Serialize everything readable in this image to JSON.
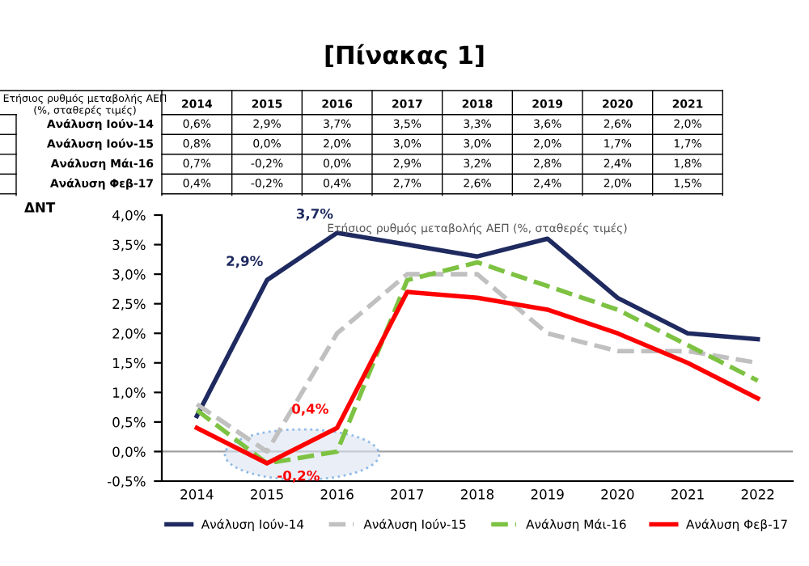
{
  "chart_data": {
    "type": "line",
    "title": "[Πίνακας 1]",
    "subtitle": "Ετήσιος ρυθμός μεταβολής ΑΕΠ (%, σταθερές τιμές)",
    "categories": [
      "2014",
      "2015",
      "2016",
      "2017",
      "2018",
      "2019",
      "2020",
      "2021",
      "2022"
    ],
    "series": [
      {
        "name": "Ανάλυση Ιούν-14",
        "color": "#1f2a60",
        "line_style": "solid",
        "values": [
          0.6,
          2.9,
          3.7,
          3.5,
          3.3,
          3.6,
          2.6,
          2.0,
          1.9
        ],
        "value_labels": [
          "0,6%",
          "2,9%",
          "3,7%",
          "3,5%",
          "3,3%",
          "3,6%",
          "2,6%",
          "2,0%",
          null
        ]
      },
      {
        "name": "Ανάλυση Ιούν-15",
        "color": "#c0c0c0",
        "line_style": "dashed",
        "values": [
          0.8,
          0.0,
          2.0,
          3.0,
          3.0,
          2.0,
          1.7,
          1.7,
          1.5
        ],
        "value_labels": [
          "0,8%",
          "0,0%",
          "2,0%",
          "3,0%",
          "3,0%",
          "2,0%",
          "1,7%",
          "1,7%",
          null
        ]
      },
      {
        "name": "Ανάλυση Μάι-16",
        "color": "#7dc242",
        "line_style": "dashed",
        "values": [
          0.7,
          -0.2,
          0.0,
          2.9,
          3.2,
          2.8,
          2.4,
          1.8,
          1.2
        ],
        "value_labels": [
          "0,7%",
          "-0,2%",
          "0,0%",
          "2,9%",
          "3,2%",
          "2,8%",
          "2,4%",
          "1,8%",
          null
        ]
      },
      {
        "name": "Ανάλυση Φεβ-17",
        "color": "#ff0000",
        "line_style": "solid",
        "values": [
          0.4,
          -0.2,
          0.4,
          2.7,
          2.6,
          2.4,
          2.0,
          1.5,
          0.9
        ],
        "value_labels": [
          "0,4%",
          "-0,2%",
          "0,4%",
          "2,7%",
          "2,6%",
          "2,4%",
          "2,0%",
          "1,5%",
          null
        ]
      }
    ],
    "ylim": [
      -0.5,
      4.0
    ],
    "yticks": [
      {
        "value": -0.5,
        "label": "-0,5%"
      },
      {
        "value": 0.0,
        "label": "0,0%"
      },
      {
        "value": 0.5,
        "label": "0,5%"
      },
      {
        "value": 1.0,
        "label": "1,0%"
      },
      {
        "value": 1.5,
        "label": "1,5%"
      },
      {
        "value": 2.0,
        "label": "2,0%"
      },
      {
        "value": 2.5,
        "label": "2,5%"
      },
      {
        "value": 3.0,
        "label": "3,0%"
      },
      {
        "value": 3.5,
        "label": "3,5%"
      },
      {
        "value": 4.0,
        "label": "4,0%"
      }
    ],
    "ref_lines": [
      {
        "axis": "y",
        "value": 0.0,
        "label": null,
        "color": "#a0a0a0"
      }
    ],
    "annotations": [
      {
        "text": "2,9%",
        "x": "2015",
        "y": 2.9
      },
      {
        "text": "3,7%",
        "x": "2016",
        "y": 3.7
      },
      {
        "text": "-0,2%",
        "x": "2015",
        "y": -0.2
      },
      {
        "text": "0,4%",
        "x": "2016",
        "y": 0.4
      },
      "ΔΝΤ"
    ],
    "grid": false,
    "legend": "bottom",
    "marker": "none"
  }
}
